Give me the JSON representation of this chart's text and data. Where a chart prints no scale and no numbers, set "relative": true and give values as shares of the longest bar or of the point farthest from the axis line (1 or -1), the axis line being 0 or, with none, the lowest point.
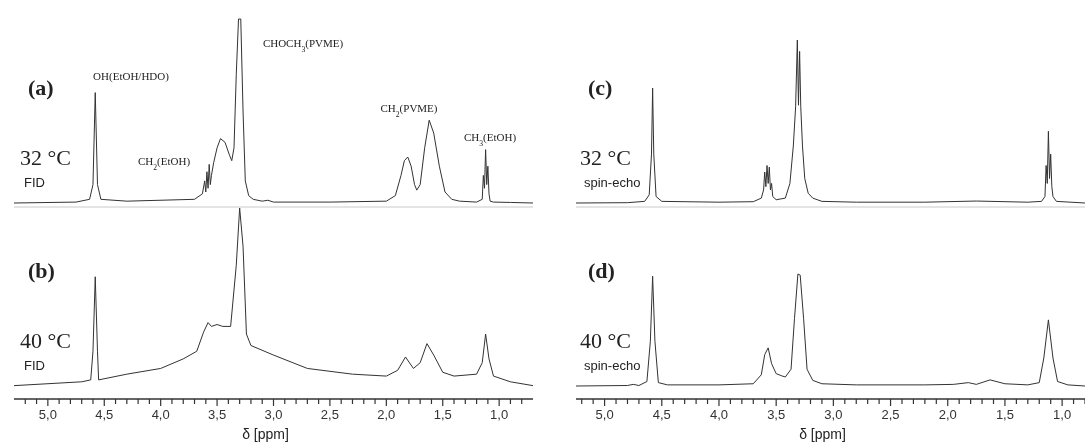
{
  "chart_data": [
    {
      "type": "line",
      "relative": true,
      "xlim": [
        5.3,
        0.7
      ],
      "tick_labels": false,
      "annotations": [
        "(a)",
        "32 °C",
        "FID",
        "OH(EtOH/HDO)",
        "CH$_{2}$(EtOH)",
        "CHOCH$_{3}$(PVME)",
        "CH$_{2}$(PVME)",
        "CH$_{3}$(EtOH)"
      ],
      "series": [
        {
          "color": "#333333",
          "x": [
            5.3,
            4.75,
            4.63,
            4.6,
            4.58,
            4.56,
            4.53,
            4.3,
            3.7,
            3.63,
            3.61,
            3.6,
            3.59,
            3.58,
            3.57,
            3.56,
            3.55,
            3.53,
            3.5,
            3.47,
            3.43,
            3.39,
            3.37,
            3.35,
            3.33,
            3.31,
            3.29,
            3.27,
            3.25,
            3.22,
            3.18,
            3.1,
            3.05,
            3.0,
            2.5,
            2.0,
            1.92,
            1.87,
            1.84,
            1.81,
            1.78,
            1.75,
            1.73,
            1.7,
            1.66,
            1.62,
            1.58,
            1.53,
            1.48,
            1.42,
            1.35,
            1.2,
            1.15,
            1.14,
            1.13,
            1.12,
            1.11,
            1.1,
            1.09,
            1.08,
            1.05,
            0.9,
            0.7
          ],
          "values": [
            0,
            0.005,
            0.02,
            0.1,
            0.6,
            0.1,
            0.02,
            0.01,
            0.02,
            0.05,
            0.12,
            0.06,
            0.17,
            0.08,
            0.21,
            0.1,
            0.15,
            0.22,
            0.3,
            0.35,
            0.33,
            0.26,
            0.23,
            0.3,
            0.7,
            1,
            1,
            0.5,
            0.12,
            0.04,
            0.02,
            0.01,
            0.015,
            0.005,
            0.005,
            0.01,
            0.04,
            0.15,
            0.23,
            0.25,
            0.2,
            0.1,
            0.07,
            0.1,
            0.3,
            0.45,
            0.38,
            0.2,
            0.06,
            0.02,
            0.01,
            0.005,
            0.02,
            0.15,
            0.08,
            0.29,
            0.1,
            0.2,
            0.05,
            0.01,
            0.005,
            0.003,
            0
          ]
        }
      ]
    },
    {
      "type": "line",
      "relative": true,
      "xlim": [
        5.25,
        0.8
      ],
      "tick_labels": false,
      "annotations": [
        "(c)",
        "32 °C",
        "spin-echo"
      ],
      "series": [
        {
          "color": "#333333",
          "x": [
            5.25,
            4.8,
            4.65,
            4.61,
            4.59,
            4.58,
            4.57,
            4.55,
            4.5,
            4.0,
            3.7,
            3.63,
            3.61,
            3.6,
            3.59,
            3.58,
            3.57,
            3.56,
            3.55,
            3.54,
            3.53,
            3.5,
            3.42,
            3.38,
            3.35,
            3.33,
            3.315,
            3.305,
            3.295,
            3.285,
            3.27,
            3.25,
            3.22,
            3.18,
            3.1,
            2.8,
            2.2,
            1.75,
            1.3,
            1.18,
            1.15,
            1.14,
            1.13,
            1.12,
            1.11,
            1.1,
            1.09,
            1.08,
            1.05,
            0.8
          ],
          "values": [
            0,
            0.002,
            0.01,
            0.05,
            0.3,
            0.705,
            0.3,
            0.04,
            0.01,
            0.005,
            0.008,
            0.03,
            0.08,
            0.19,
            0.1,
            0.23,
            0.12,
            0.22,
            0.08,
            0.12,
            0.04,
            0.02,
            0.03,
            0.12,
            0.35,
            0.59,
            1,
            0.6,
            0.93,
            0.59,
            0.35,
            0.15,
            0.06,
            0.03,
            0.01,
            0.005,
            0.005,
            0.012,
            0.005,
            0.01,
            0.04,
            0.23,
            0.12,
            0.44,
            0.15,
            0.3,
            0.1,
            0.04,
            0.01,
            0
          ]
        }
      ]
    },
    {
      "type": "line",
      "relative": true,
      "xlim": [
        5.3,
        0.7
      ],
      "tick_labels": "x",
      "xlabel": "δ [ppm]",
      "xticks": [
        {
          "value": 5.2,
          "label": null
        },
        {
          "value": 5.1,
          "label": null
        },
        {
          "value": 5,
          "label": "5,0"
        },
        {
          "value": 4.9,
          "label": null
        },
        {
          "value": 4.8,
          "label": null
        },
        {
          "value": 4.7,
          "label": null
        },
        {
          "value": 4.6,
          "label": null
        },
        {
          "value": 4.5,
          "label": "4,5"
        },
        {
          "value": 4.4,
          "label": null
        },
        {
          "value": 4.3,
          "label": null
        },
        {
          "value": 4.2,
          "label": null
        },
        {
          "value": 4.1,
          "label": null
        },
        {
          "value": 4,
          "label": "4,0"
        },
        {
          "value": 3.9,
          "label": null
        },
        {
          "value": 3.8,
          "label": null
        },
        {
          "value": 3.7,
          "label": null
        },
        {
          "value": 3.6,
          "label": null
        },
        {
          "value": 3.5,
          "label": "3,5"
        },
        {
          "value": 3.4,
          "label": null
        },
        {
          "value": 3.3,
          "label": null
        },
        {
          "value": 3.2,
          "label": null
        },
        {
          "value": 3.1,
          "label": null
        },
        {
          "value": 3,
          "label": "3,0"
        },
        {
          "value": 2.9,
          "label": null
        },
        {
          "value": 2.8,
          "label": null
        },
        {
          "value": 2.7,
          "label": null
        },
        {
          "value": 2.6,
          "label": null
        },
        {
          "value": 2.5,
          "label": "2,5"
        },
        {
          "value": 2.4,
          "label": null
        },
        {
          "value": 2.3,
          "label": null
        },
        {
          "value": 2.2,
          "label": null
        },
        {
          "value": 2.1,
          "label": null
        },
        {
          "value": 2,
          "label": "2,0"
        },
        {
          "value": 1.9,
          "label": null
        },
        {
          "value": 1.8,
          "label": null
        },
        {
          "value": 1.7,
          "label": null
        },
        {
          "value": 1.6,
          "label": null
        },
        {
          "value": 1.5,
          "label": "1,5"
        },
        {
          "value": 1.4,
          "label": null
        },
        {
          "value": 1.3,
          "label": null
        },
        {
          "value": 1.2,
          "label": null
        },
        {
          "value": 1.1,
          "label": null
        },
        {
          "value": 1,
          "label": "1,0"
        },
        {
          "value": 0.9,
          "label": null
        },
        {
          "value": 0.8,
          "label": null
        }
      ],
      "annotations": [
        "(b)",
        "40 °C",
        "FID"
      ],
      "series": [
        {
          "color": "#333333",
          "x": [
            5.3,
            4.7,
            4.62,
            4.6,
            4.58,
            4.56,
            4.55,
            4.3,
            4.0,
            3.8,
            3.68,
            3.62,
            3.58,
            3.55,
            3.5,
            3.45,
            3.38,
            3.33,
            3.3,
            3.27,
            3.24,
            3.2,
            3.0,
            2.7,
            2.3,
            2.0,
            1.9,
            1.83,
            1.76,
            1.7,
            1.64,
            1.58,
            1.5,
            1.4,
            1.2,
            1.15,
            1.12,
            1.09,
            1.05,
            0.9,
            0.7
          ],
          "values": [
            0.07,
            0.09,
            0.1,
            0.25,
            0.64,
            0.25,
            0.1,
            0.13,
            0.16,
            0.21,
            0.25,
            0.35,
            0.4,
            0.38,
            0.39,
            0.38,
            0.38,
            0.7,
            1,
            0.8,
            0.34,
            0.28,
            0.23,
            0.16,
            0.13,
            0.12,
            0.15,
            0.22,
            0.16,
            0.19,
            0.29,
            0.23,
            0.14,
            0.12,
            0.13,
            0.19,
            0.34,
            0.21,
            0.12,
            0.09,
            0.07
          ]
        }
      ]
    },
    {
      "type": "line",
      "relative": true,
      "xlim": [
        5.25,
        0.8
      ],
      "tick_labels": "x",
      "xlabel": "δ [ppm]",
      "xticks": [
        {
          "value": 5.2,
          "label": null
        },
        {
          "value": 5.1,
          "label": null
        },
        {
          "value": 5,
          "label": "5,0"
        },
        {
          "value": 4.9,
          "label": null
        },
        {
          "value": 4.8,
          "label": null
        },
        {
          "value": 4.7,
          "label": null
        },
        {
          "value": 4.6,
          "label": null
        },
        {
          "value": 4.5,
          "label": "4,5"
        },
        {
          "value": 4.4,
          "label": null
        },
        {
          "value": 4.3,
          "label": null
        },
        {
          "value": 4.2,
          "label": null
        },
        {
          "value": 4.1,
          "label": null
        },
        {
          "value": 4,
          "label": "4,0"
        },
        {
          "value": 3.9,
          "label": null
        },
        {
          "value": 3.8,
          "label": null
        },
        {
          "value": 3.7,
          "label": null
        },
        {
          "value": 3.6,
          "label": null
        },
        {
          "value": 3.5,
          "label": "3,5"
        },
        {
          "value": 3.4,
          "label": null
        },
        {
          "value": 3.3,
          "label": null
        },
        {
          "value": 3.2,
          "label": null
        },
        {
          "value": 3.1,
          "label": null
        },
        {
          "value": 3,
          "label": "3,0"
        },
        {
          "value": 2.9,
          "label": null
        },
        {
          "value": 2.8,
          "label": null
        },
        {
          "value": 2.7,
          "label": null
        },
        {
          "value": 2.6,
          "label": null
        },
        {
          "value": 2.5,
          "label": "2,5"
        },
        {
          "value": 2.4,
          "label": null
        },
        {
          "value": 2.3,
          "label": null
        },
        {
          "value": 2.2,
          "label": null
        },
        {
          "value": 2.1,
          "label": null
        },
        {
          "value": 2,
          "label": "2,0"
        },
        {
          "value": 1.9,
          "label": null
        },
        {
          "value": 1.8,
          "label": null
        },
        {
          "value": 1.7,
          "label": null
        },
        {
          "value": 1.6,
          "label": null
        },
        {
          "value": 1.5,
          "label": "1,5"
        },
        {
          "value": 1.4,
          "label": null
        },
        {
          "value": 1.3,
          "label": null
        },
        {
          "value": 1.2,
          "label": null
        },
        {
          "value": 1.1,
          "label": null
        },
        {
          "value": 1,
          "label": "1,0"
        },
        {
          "value": 0.9,
          "label": null
        },
        {
          "value": 0.8,
          "label": null
        }
      ],
      "annotations": [
        "(d)",
        "40 °C",
        "spin-echo"
      ],
      "series": [
        {
          "color": "#333333",
          "x": [
            5.25,
            4.8,
            4.75,
            4.7,
            4.63,
            4.6,
            4.58,
            4.56,
            4.53,
            4.45,
            4.0,
            3.7,
            3.63,
            3.6,
            3.57,
            3.54,
            3.5,
            3.45,
            3.42,
            3.37,
            3.34,
            3.31,
            3.29,
            3.26,
            3.23,
            3.18,
            3.1,
            2.8,
            2.2,
            1.95,
            1.82,
            1.75,
            1.63,
            1.5,
            1.3,
            1.2,
            1.16,
            1.12,
            1.08,
            1.04,
            0.95,
            0.8
          ],
          "values": [
            0.104,
            0.108,
            0.117,
            0.108,
            0.14,
            0.462,
            0.982,
            0.462,
            0.131,
            0.113,
            0.113,
            0.122,
            0.194,
            0.355,
            0.409,
            0.283,
            0.203,
            0.185,
            0.176,
            0.238,
            0.642,
            1,
            0.991,
            0.642,
            0.238,
            0.149,
            0.122,
            0.113,
            0.113,
            0.117,
            0.131,
            0.117,
            0.153,
            0.122,
            0.113,
            0.131,
            0.328,
            0.633,
            0.328,
            0.14,
            0.113,
            0.104
          ]
        }
      ]
    }
  ]
}
